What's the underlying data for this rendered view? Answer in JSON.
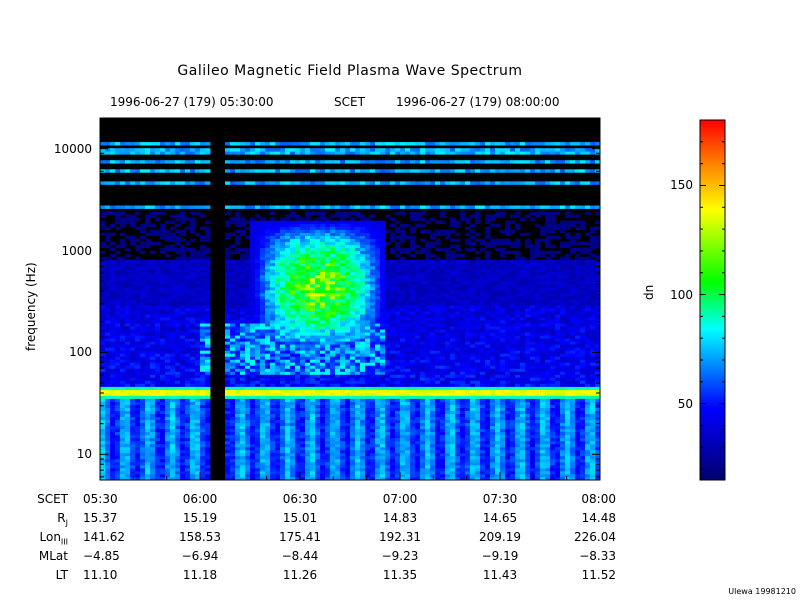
{
  "chart_data": {
    "type": "heatmap",
    "title": "Galileo Magnetic Field Plasma Wave Spectrum",
    "time_range": {
      "start_label": "1996-06-27 (179) 05:30:00",
      "center_label": "SCET",
      "end_label": "1996-06-27 (179) 08:00:00"
    },
    "ylabel": "frequency (Hz)",
    "yscale": "log",
    "ylim": [
      5.6,
      20000
    ],
    "y_ticks": [
      "10",
      "100",
      "1000",
      "10000"
    ],
    "colorbar": {
      "label": "dn",
      "range": [
        15,
        180
      ],
      "ticks": [
        "50",
        "100",
        "150"
      ],
      "colormap": [
        "#000080",
        "#0000ff",
        "#00ffff",
        "#00ff00",
        "#ffff00",
        "#ff0000"
      ]
    },
    "data_gap": {
      "start": "06:03",
      "end": "06:06"
    },
    "features": [
      {
        "label": "narrowband emission",
        "frequency_hz": 40,
        "intensity_dn": 150
      },
      {
        "label": "broadband emission",
        "time_start": "06:15",
        "time_end": "06:55",
        "f_low_hz": 200,
        "f_high_hz": 2000,
        "intensity_dn": 140
      },
      {
        "label": "spacecraft interference lines",
        "frequencies_hz": [
          2700,
          4500,
          6000,
          7500,
          9000,
          10000,
          11000
        ],
        "intensity_dn": 80
      }
    ]
  },
  "ephemeris": {
    "rows": [
      {
        "label": "SCET",
        "values": [
          "05:30",
          "06:00",
          "06:30",
          "07:00",
          "07:30",
          "08:00"
        ]
      },
      {
        "label": "R",
        "sub": "J",
        "values": [
          "15.37",
          "15.19",
          "15.01",
          "14.83",
          "14.65",
          "14.48"
        ]
      },
      {
        "label": "Lon",
        "sub": "III",
        "values": [
          "141.62",
          "158.53",
          "175.41",
          "192.31",
          "209.19",
          "226.04"
        ]
      },
      {
        "label": "MLat",
        "values": [
          "−4.85",
          "−6.94",
          "−8.44",
          "−9.23",
          "−9.19",
          "−8.33"
        ]
      },
      {
        "label": "LT",
        "values": [
          "11.10",
          "11.18",
          "11.26",
          "11.35",
          "11.43",
          "11.52"
        ]
      }
    ]
  },
  "footer": "Ulewa 19981210"
}
